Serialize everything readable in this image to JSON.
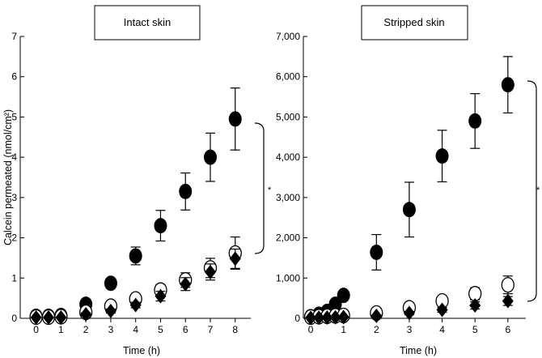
{
  "chart_data": [
    {
      "type": "scatter",
      "title": "Intact skin",
      "xlabel": "Time (h)",
      "ylabel": "Calcein permeated (nmol/cm²)",
      "xlim": [
        -0.15,
        8.3
      ],
      "ylim": [
        0,
        7
      ],
      "xticks": [
        0,
        1,
        2,
        3,
        4,
        5,
        6,
        7,
        8
      ],
      "yticks": [
        0,
        1,
        2,
        3,
        4,
        5,
        6,
        7
      ],
      "ytick_labels": [
        "0",
        "1",
        "2",
        "3",
        "4",
        "5",
        "6",
        "7"
      ],
      "annotation": "*",
      "series": [
        {
          "name": "filled-circle",
          "marker": "filled-circle",
          "x": [
            0,
            0.5,
            1,
            2,
            3,
            4,
            5,
            6,
            7,
            8
          ],
          "y": [
            0.05,
            0.05,
            0.07,
            0.35,
            0.87,
            1.55,
            2.3,
            3.15,
            4.0,
            4.95
          ],
          "err": [
            0,
            0,
            0,
            0.1,
            0.12,
            0.22,
            0.38,
            0.46,
            0.6,
            0.77
          ]
        },
        {
          "name": "open-circle",
          "marker": "open-circle",
          "x": [
            0,
            0.5,
            1,
            2,
            3,
            4,
            5,
            6,
            7,
            8
          ],
          "y": [
            0.03,
            0.03,
            0.04,
            0.15,
            0.3,
            0.48,
            0.7,
            0.95,
            1.25,
            1.62
          ],
          "err": [
            0,
            0,
            0,
            0.05,
            0.06,
            0.08,
            0.14,
            0.18,
            0.24,
            0.4
          ]
        },
        {
          "name": "filled-diamond",
          "marker": "filled-diamond",
          "x": [
            0,
            0.5,
            1,
            2,
            3,
            4,
            5,
            6,
            7,
            8
          ],
          "y": [
            0.02,
            0.02,
            0.02,
            0.1,
            0.18,
            0.33,
            0.55,
            0.85,
            1.15,
            1.48
          ],
          "err": [
            0,
            0,
            0,
            0.04,
            0.05,
            0.07,
            0.12,
            0.16,
            0.2,
            0.24
          ]
        }
      ]
    },
    {
      "type": "scatter",
      "title": "Stripped skin",
      "xlabel": "Time (h)",
      "ylabel": "",
      "xlim": [
        -0.1,
        6.3
      ],
      "ylim": [
        0,
        7000
      ],
      "xticks": [
        0,
        1,
        2,
        3,
        4,
        5,
        6
      ],
      "yticks": [
        0,
        1000,
        2000,
        3000,
        4000,
        5000,
        6000,
        7000
      ],
      "ytick_labels": [
        "0",
        "1,000",
        "2,000",
        "3,000",
        "4,000",
        "5,000",
        "6,000",
        "7,000"
      ],
      "annotation": "*",
      "series": [
        {
          "name": "filled-circle",
          "marker": "filled-circle",
          "x": [
            0,
            0.25,
            0.5,
            0.75,
            1,
            2,
            3,
            4,
            5,
            6
          ],
          "y": [
            40,
            100,
            170,
            350,
            570,
            1640,
            2700,
            4030,
            4900,
            5800
          ],
          "err": [
            0,
            0,
            0,
            0,
            0,
            440,
            680,
            640,
            680,
            700
          ]
        },
        {
          "name": "open-circle",
          "marker": "open-circle",
          "x": [
            0,
            0.25,
            0.5,
            0.75,
            1,
            2,
            3,
            4,
            5,
            6
          ],
          "y": [
            30,
            40,
            50,
            60,
            70,
            130,
            260,
            430,
            610,
            830
          ],
          "err": [
            0,
            0,
            0,
            0,
            0,
            40,
            70,
            110,
            150,
            220
          ]
        },
        {
          "name": "filled-diamond",
          "marker": "filled-diamond",
          "x": [
            0,
            0.25,
            0.5,
            0.75,
            1,
            2,
            3,
            4,
            5,
            6
          ],
          "y": [
            10,
            15,
            20,
            25,
            30,
            60,
            130,
            210,
            320,
            430
          ],
          "err": [
            0,
            0,
            0,
            0,
            0,
            20,
            40,
            60,
            90,
            110
          ]
        }
      ]
    }
  ]
}
